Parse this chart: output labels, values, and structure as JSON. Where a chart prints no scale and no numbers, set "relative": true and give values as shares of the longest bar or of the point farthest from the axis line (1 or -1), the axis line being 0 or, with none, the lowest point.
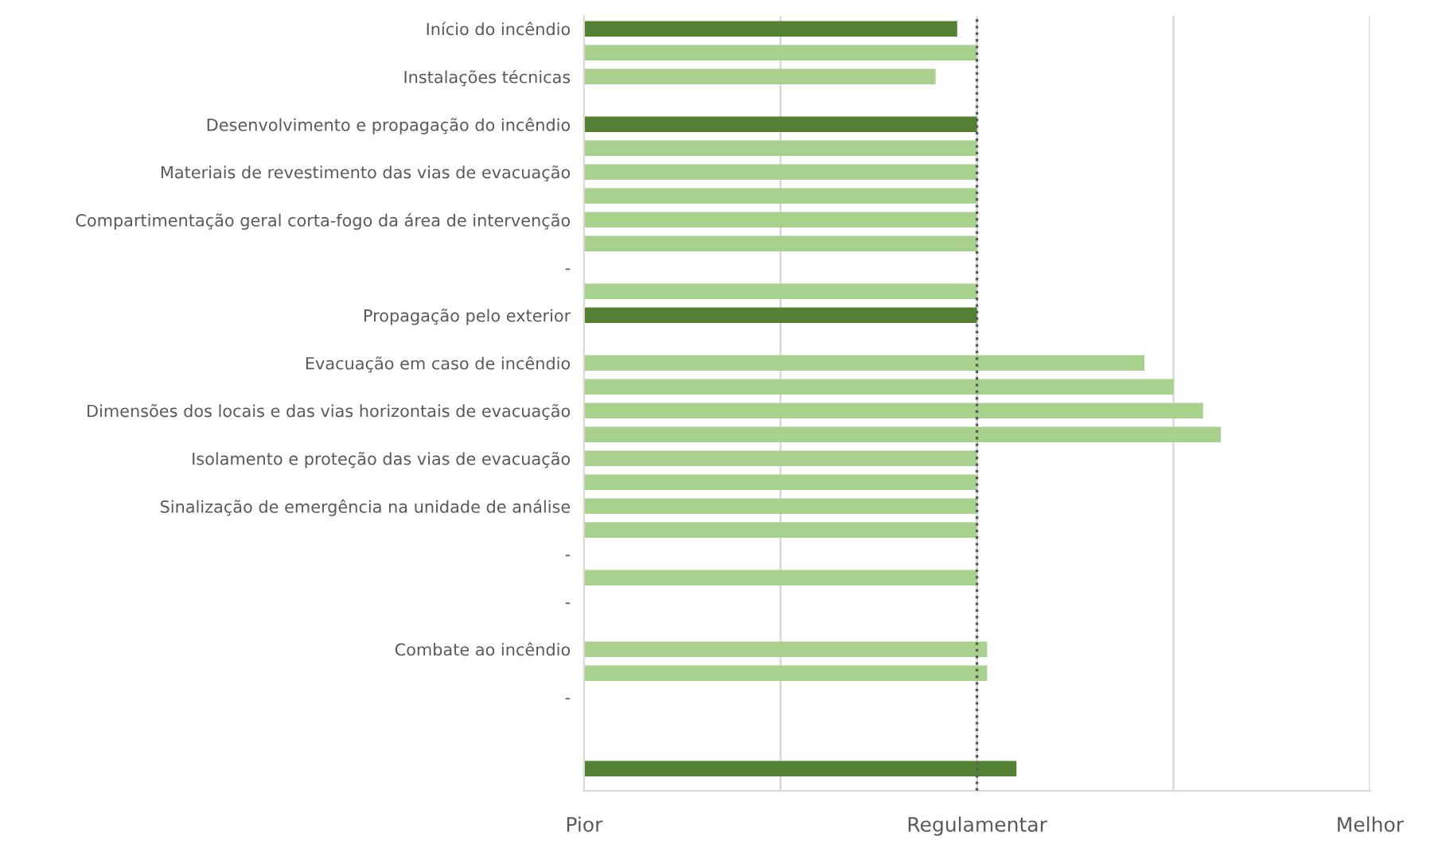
{
  "chart_data": {
    "type": "bar",
    "orientation": "horizontal",
    "relative": true,
    "categories": [
      "Início do incêndio",
      null,
      "Instalações técnicas",
      null,
      "Desenvolvimento e propagação do incêndio",
      null,
      "Materiais de revestimento das vias de evacuação",
      null,
      "Compartimentação geral corta-fogo da área de intervenção",
      null,
      "-",
      null,
      "Propagação pelo exterior",
      null,
      "Evacuação em caso de incêndio",
      null,
      "Dimensões dos locais e das vias horizontais de evacuação",
      null,
      "Isolamento e proteção das vias de evacuação",
      null,
      "Sinalização de emergência na unidade de análise",
      null,
      "-",
      null,
      "-",
      null,
      "Combate ao incêndio",
      null,
      "-",
      null,
      null,
      null
    ],
    "values": [
      0.586,
      0.617,
      0.552,
      null,
      0.617,
      0.617,
      0.617,
      0.617,
      0.617,
      0.617,
      null,
      0.617,
      0.617,
      null,
      0.88,
      0.926,
      0.972,
      1,
      0.617,
      0.617,
      0.617,
      0.617,
      null,
      0.617,
      null,
      null,
      0.633,
      0.633,
      null,
      null,
      null,
      0.679
    ],
    "colors": [
      "#548235",
      "#a9d18e",
      "#a9d18e",
      "#a9d18e",
      "#548235",
      "#a9d18e",
      "#a9d18e",
      "#a9d18e",
      "#a9d18e",
      "#a9d18e",
      "#a9d18e",
      "#a9d18e",
      "#548235",
      "#a9d18e",
      "#a9d18e",
      "#a9d18e",
      "#a9d18e",
      "#a9d18e",
      "#a9d18e",
      "#a9d18e",
      "#a9d18e",
      "#a9d18e",
      "#a9d18e",
      "#a9d18e",
      "#a9d18e",
      "#a9d18e",
      "#a9d18e",
      "#a9d18e",
      "#a9d18e",
      "#a9d18e",
      "#a9d18e",
      "#548235"
    ],
    "grid": "x",
    "annotations": [
      "Pior",
      "Melhor"
    ],
    "ref_lines": [
      {
        "axis": "x",
        "value": 0.617,
        "label": "Regulamentar",
        "color": "#595959",
        "line_style": "dotted"
      }
    ]
  }
}
